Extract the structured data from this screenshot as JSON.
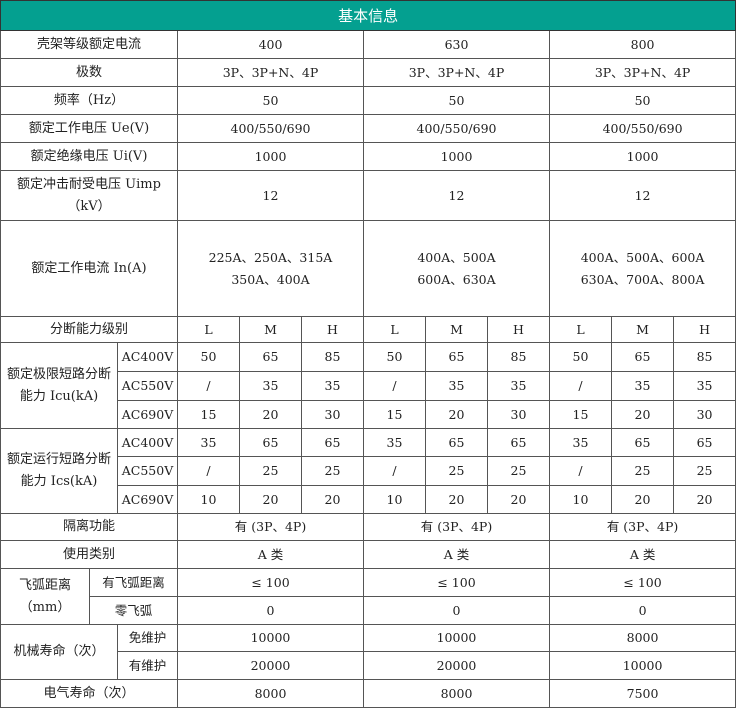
{
  "title": "基本信息",
  "colors": {
    "header_bg": "#04a090",
    "header_text": "#ffffff",
    "border": "#555555"
  },
  "frame_current": {
    "label": "壳架等级额定电流",
    "values": [
      "400",
      "630",
      "800"
    ]
  },
  "poles": {
    "label": "极数",
    "values": [
      "3P、3P+N、4P",
      "3P、3P+N、4P",
      "3P、3P+N、4P"
    ]
  },
  "frequency": {
    "label": "频率（Hz）",
    "values": [
      "50",
      "50",
      "50"
    ]
  },
  "ue": {
    "label": "额定工作电压 Ue(V)",
    "values": [
      "400/550/690",
      "400/550/690",
      "400/550/690"
    ]
  },
  "ui": {
    "label": "额定绝缘电压 Ui(V)",
    "values": [
      "1000",
      "1000",
      "1000"
    ]
  },
  "uimp": {
    "label": "额定冲击耐受电压 Uimp（kV）",
    "values": [
      "12",
      "12",
      "12"
    ]
  },
  "in": {
    "label": "额定工作电流 In(A)",
    "values": [
      [
        "225A、250A、315A",
        "350A、400A"
      ],
      [
        "400A、500A",
        "600A、630A"
      ],
      [
        "400A、500A、600A",
        "630A、700A、800A"
      ]
    ]
  },
  "breaking_class": {
    "label": "分断能力级别",
    "levels": [
      "L",
      "M",
      "H",
      "L",
      "M",
      "H",
      "L",
      "M",
      "H"
    ]
  },
  "icu": {
    "label": "额定极限短路分断能力 Icu(kA)",
    "rows": [
      {
        "voltage": "AC400V",
        "values": [
          "50",
          "65",
          "85",
          "50",
          "65",
          "85",
          "50",
          "65",
          "85"
        ]
      },
      {
        "voltage": "AC550V",
        "values": [
          "/",
          "35",
          "35",
          "/",
          "35",
          "35",
          "/",
          "35",
          "35"
        ]
      },
      {
        "voltage": "AC690V",
        "values": [
          "15",
          "20",
          "30",
          "15",
          "20",
          "30",
          "15",
          "20",
          "30"
        ]
      }
    ]
  },
  "ics": {
    "label": "额定运行短路分断能力 Ics(kA)",
    "rows": [
      {
        "voltage": "AC400V",
        "values": [
          "35",
          "65",
          "65",
          "35",
          "65",
          "65",
          "35",
          "65",
          "65"
        ]
      },
      {
        "voltage": "AC550V",
        "values": [
          "/",
          "25",
          "25",
          "/",
          "25",
          "25",
          "/",
          "25",
          "25"
        ]
      },
      {
        "voltage": "AC690V",
        "values": [
          "10",
          "20",
          "20",
          "10",
          "20",
          "20",
          "10",
          "20",
          "20"
        ]
      }
    ]
  },
  "isolation": {
    "label": "隔离功能",
    "values": [
      "有 (3P、4P)",
      "有 (3P、4P)",
      "有 (3P、4P)"
    ]
  },
  "category": {
    "label": "使用类别",
    "values": [
      "A 类",
      "A 类",
      "A 类"
    ]
  },
  "arc": {
    "label": "飞弧距离（mm）",
    "rows": [
      {
        "sub": "有飞弧距离",
        "values": [
          "≤ 100",
          "≤ 100",
          "≤ 100"
        ]
      },
      {
        "sub": "零飞弧",
        "values": [
          "0",
          "0",
          "0"
        ]
      }
    ]
  },
  "mech_life": {
    "label": "机械寿命（次）",
    "rows": [
      {
        "sub": "免维护",
        "values": [
          "10000",
          "10000",
          "8000"
        ]
      },
      {
        "sub": "有维护",
        "values": [
          "20000",
          "20000",
          "10000"
        ]
      }
    ]
  },
  "elec_life": {
    "label": "电气寿命（次）",
    "values": [
      "8000",
      "8000",
      "7500"
    ]
  }
}
